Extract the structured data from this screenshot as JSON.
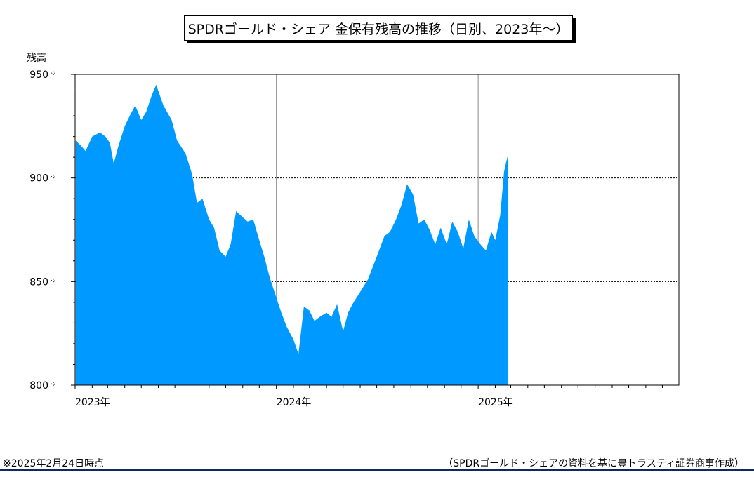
{
  "chart_data": {
    "type": "area",
    "title": "SPDRゴールド・シェア 金保有残高の推移（日別、2023年～）",
    "ylabel": "残高",
    "y_unit": "ﾄﾝ",
    "ylim": [
      800,
      950
    ],
    "yticks": [
      800,
      850,
      900,
      950
    ],
    "xlim": [
      "2023-01-01",
      "2025-12-31"
    ],
    "xticks": [
      {
        "date": "2023-01-01",
        "label": "2023年"
      },
      {
        "date": "2024-01-01",
        "label": "2024年"
      },
      {
        "date": "2025-01-01",
        "label": "2025年"
      }
    ],
    "grid": "dashed horizontal at 850 and 900; vertical at year boundaries",
    "fill_color": "#0099ff",
    "series": [
      {
        "x": [
          "2023-01-02",
          "2023-01-10",
          "2023-01-20",
          "2023-02-01",
          "2023-02-15",
          "2023-02-25",
          "2023-03-05",
          "2023-03-12",
          "2023-03-20",
          "2023-04-01",
          "2023-04-10",
          "2023-04-20",
          "2023-05-01",
          "2023-05-10",
          "2023-05-20",
          "2023-05-28",
          "2023-06-10",
          "2023-06-25",
          "2023-07-05",
          "2023-07-20",
          "2023-08-01",
          "2023-08-10",
          "2023-08-20",
          "2023-09-01",
          "2023-09-10",
          "2023-09-20",
          "2023-10-01",
          "2023-10-10",
          "2023-10-20",
          "2023-11-01",
          "2023-11-10",
          "2023-11-20",
          "2023-12-01",
          "2023-12-10",
          "2023-12-20",
          "2023-12-31",
          "2024-01-10",
          "2024-01-20",
          "2024-02-01",
          "2024-02-10",
          "2024-02-20",
          "2024-03-01",
          "2024-03-10",
          "2024-03-20",
          "2024-04-01",
          "2024-04-10",
          "2024-04-20",
          "2024-05-01",
          "2024-05-10",
          "2024-05-20",
          "2024-06-01",
          "2024-06-15",
          "2024-07-01",
          "2024-07-15",
          "2024-07-25",
          "2024-08-05",
          "2024-08-15",
          "2024-08-25",
          "2024-09-05",
          "2024-09-15",
          "2024-09-25",
          "2024-10-05",
          "2024-10-15",
          "2024-10-25",
          "2024-11-05",
          "2024-11-15",
          "2024-11-25",
          "2024-12-05",
          "2024-12-15",
          "2024-12-25",
          "2025-01-05",
          "2025-01-15",
          "2025-01-25",
          "2025-02-01",
          "2025-02-10",
          "2025-02-17",
          "2025-02-21",
          "2025-02-24"
        ],
        "values": [
          918,
          916,
          913,
          920,
          922,
          920,
          917,
          907,
          915,
          925,
          930,
          935,
          928,
          932,
          940,
          945,
          935,
          928,
          918,
          912,
          902,
          888,
          890,
          880,
          876,
          865,
          862,
          868,
          884,
          881,
          879,
          880,
          870,
          862,
          852,
          843,
          835,
          828,
          822,
          815,
          838,
          836,
          831,
          833,
          835,
          833,
          839,
          826,
          835,
          840,
          845,
          851,
          862,
          872,
          874,
          880,
          887,
          897,
          892,
          878,
          880,
          875,
          868,
          876,
          868,
          879,
          874,
          866,
          880,
          872,
          868,
          865,
          874,
          870,
          882,
          903,
          908,
          911
        ]
      }
    ],
    "notes": {
      "left": "※2025年2月24日時点",
      "right": "（SPDRゴールド・シェアの資料を基に豊トラスティ証券商事作成）"
    }
  }
}
